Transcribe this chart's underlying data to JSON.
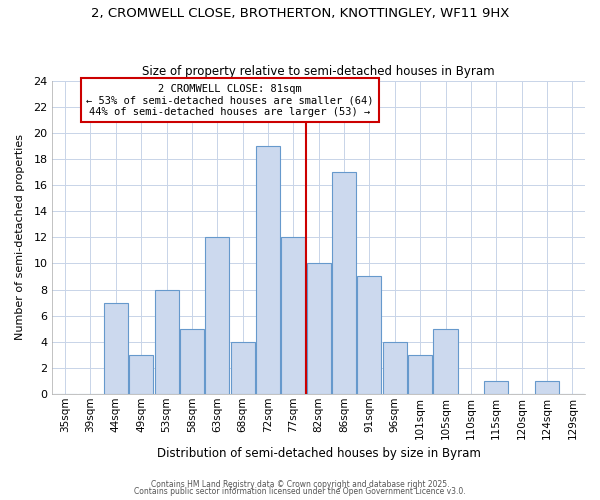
{
  "title_line1": "2, CROMWELL CLOSE, BROTHERTON, KNOTTINGLEY, WF11 9HX",
  "title_line2": "Size of property relative to semi-detached houses in Byram",
  "xlabel": "Distribution of semi-detached houses by size in Byram",
  "ylabel": "Number of semi-detached properties",
  "categories": [
    "35sqm",
    "39sqm",
    "44sqm",
    "49sqm",
    "53sqm",
    "58sqm",
    "63sqm",
    "68sqm",
    "72sqm",
    "77sqm",
    "82sqm",
    "86sqm",
    "91sqm",
    "96sqm",
    "101sqm",
    "105sqm",
    "110sqm",
    "115sqm",
    "120sqm",
    "124sqm",
    "129sqm"
  ],
  "values": [
    0,
    0,
    7,
    3,
    8,
    5,
    12,
    4,
    19,
    12,
    10,
    17,
    9,
    4,
    3,
    5,
    0,
    1,
    0,
    1,
    0
  ],
  "bar_color": "#ccd9ee",
  "bar_edgecolor": "#6699cc",
  "vline_x": 9.5,
  "vline_color": "#cc0000",
  "annotation_title": "2 CROMWELL CLOSE: 81sqm",
  "annotation_line1": "← 53% of semi-detached houses are smaller (64)",
  "annotation_line2": "44% of semi-detached houses are larger (53) →",
  "annotation_box_color": "#ffffff",
  "annotation_box_edgecolor": "#cc0000",
  "ylim": [
    0,
    24
  ],
  "yticks": [
    0,
    2,
    4,
    6,
    8,
    10,
    12,
    14,
    16,
    18,
    20,
    22,
    24
  ],
  "footer1": "Contains HM Land Registry data © Crown copyright and database right 2025.",
  "footer2": "Contains public sector information licensed under the Open Government Licence v3.0.",
  "background_color": "#ffffff",
  "grid_color": "#c8d4e8"
}
